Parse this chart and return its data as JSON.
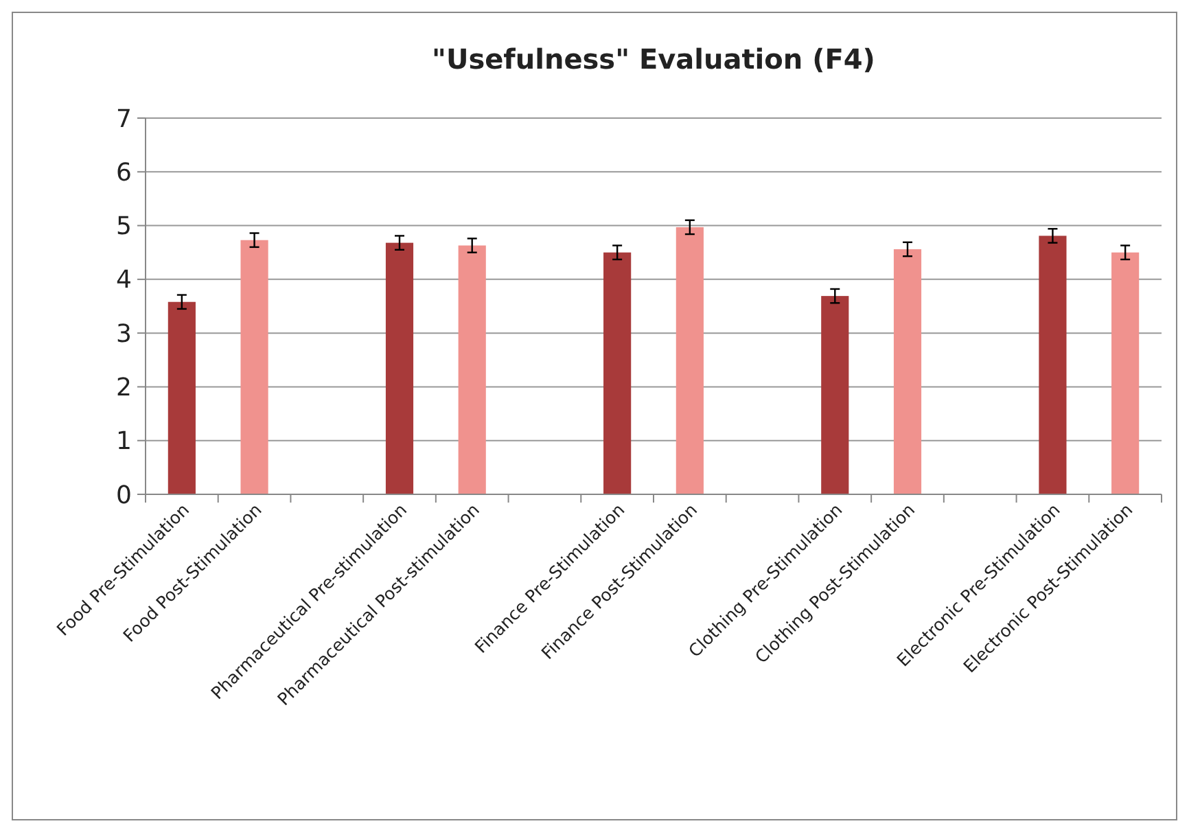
{
  "chart_data": {
    "type": "bar",
    "title": "\"Usefulness\" Evaluation (F4)",
    "categories": [
      "Food Pre-Stimulation",
      "Food Post-Stimulation",
      null,
      "Pharmaceutical Pre-stimulation",
      "Pharmaceutical Post-stimulation",
      null,
      "Finance Pre-Stimulation",
      "Finance Post-Stimulation",
      null,
      "Clothing Pre-Stimulation",
      "Clothing Post-Stimulation",
      null,
      "Electronic Pre-Stimulation",
      "Electronic Post-Stimulation"
    ],
    "values": [
      3.58,
      4.73,
      null,
      4.68,
      4.63,
      null,
      4.5,
      4.97,
      null,
      3.69,
      4.56,
      null,
      4.81,
      4.5
    ],
    "errors": [
      0.13,
      0.13,
      null,
      0.13,
      0.13,
      null,
      0.13,
      0.13,
      null,
      0.13,
      0.13,
      null,
      0.13,
      0.13
    ],
    "colors": [
      "#a83a3a",
      "#f0928e",
      null,
      "#a83a3a",
      "#f0928e",
      null,
      "#a83a3a",
      "#f0928e",
      null,
      "#a83a3a",
      "#f0928e",
      null,
      "#a83a3a",
      "#f0928e"
    ],
    "ylim": [
      0,
      7
    ],
    "yticks": [
      0,
      1,
      2,
      3,
      4,
      5,
      6,
      7
    ],
    "grid": "y"
  }
}
